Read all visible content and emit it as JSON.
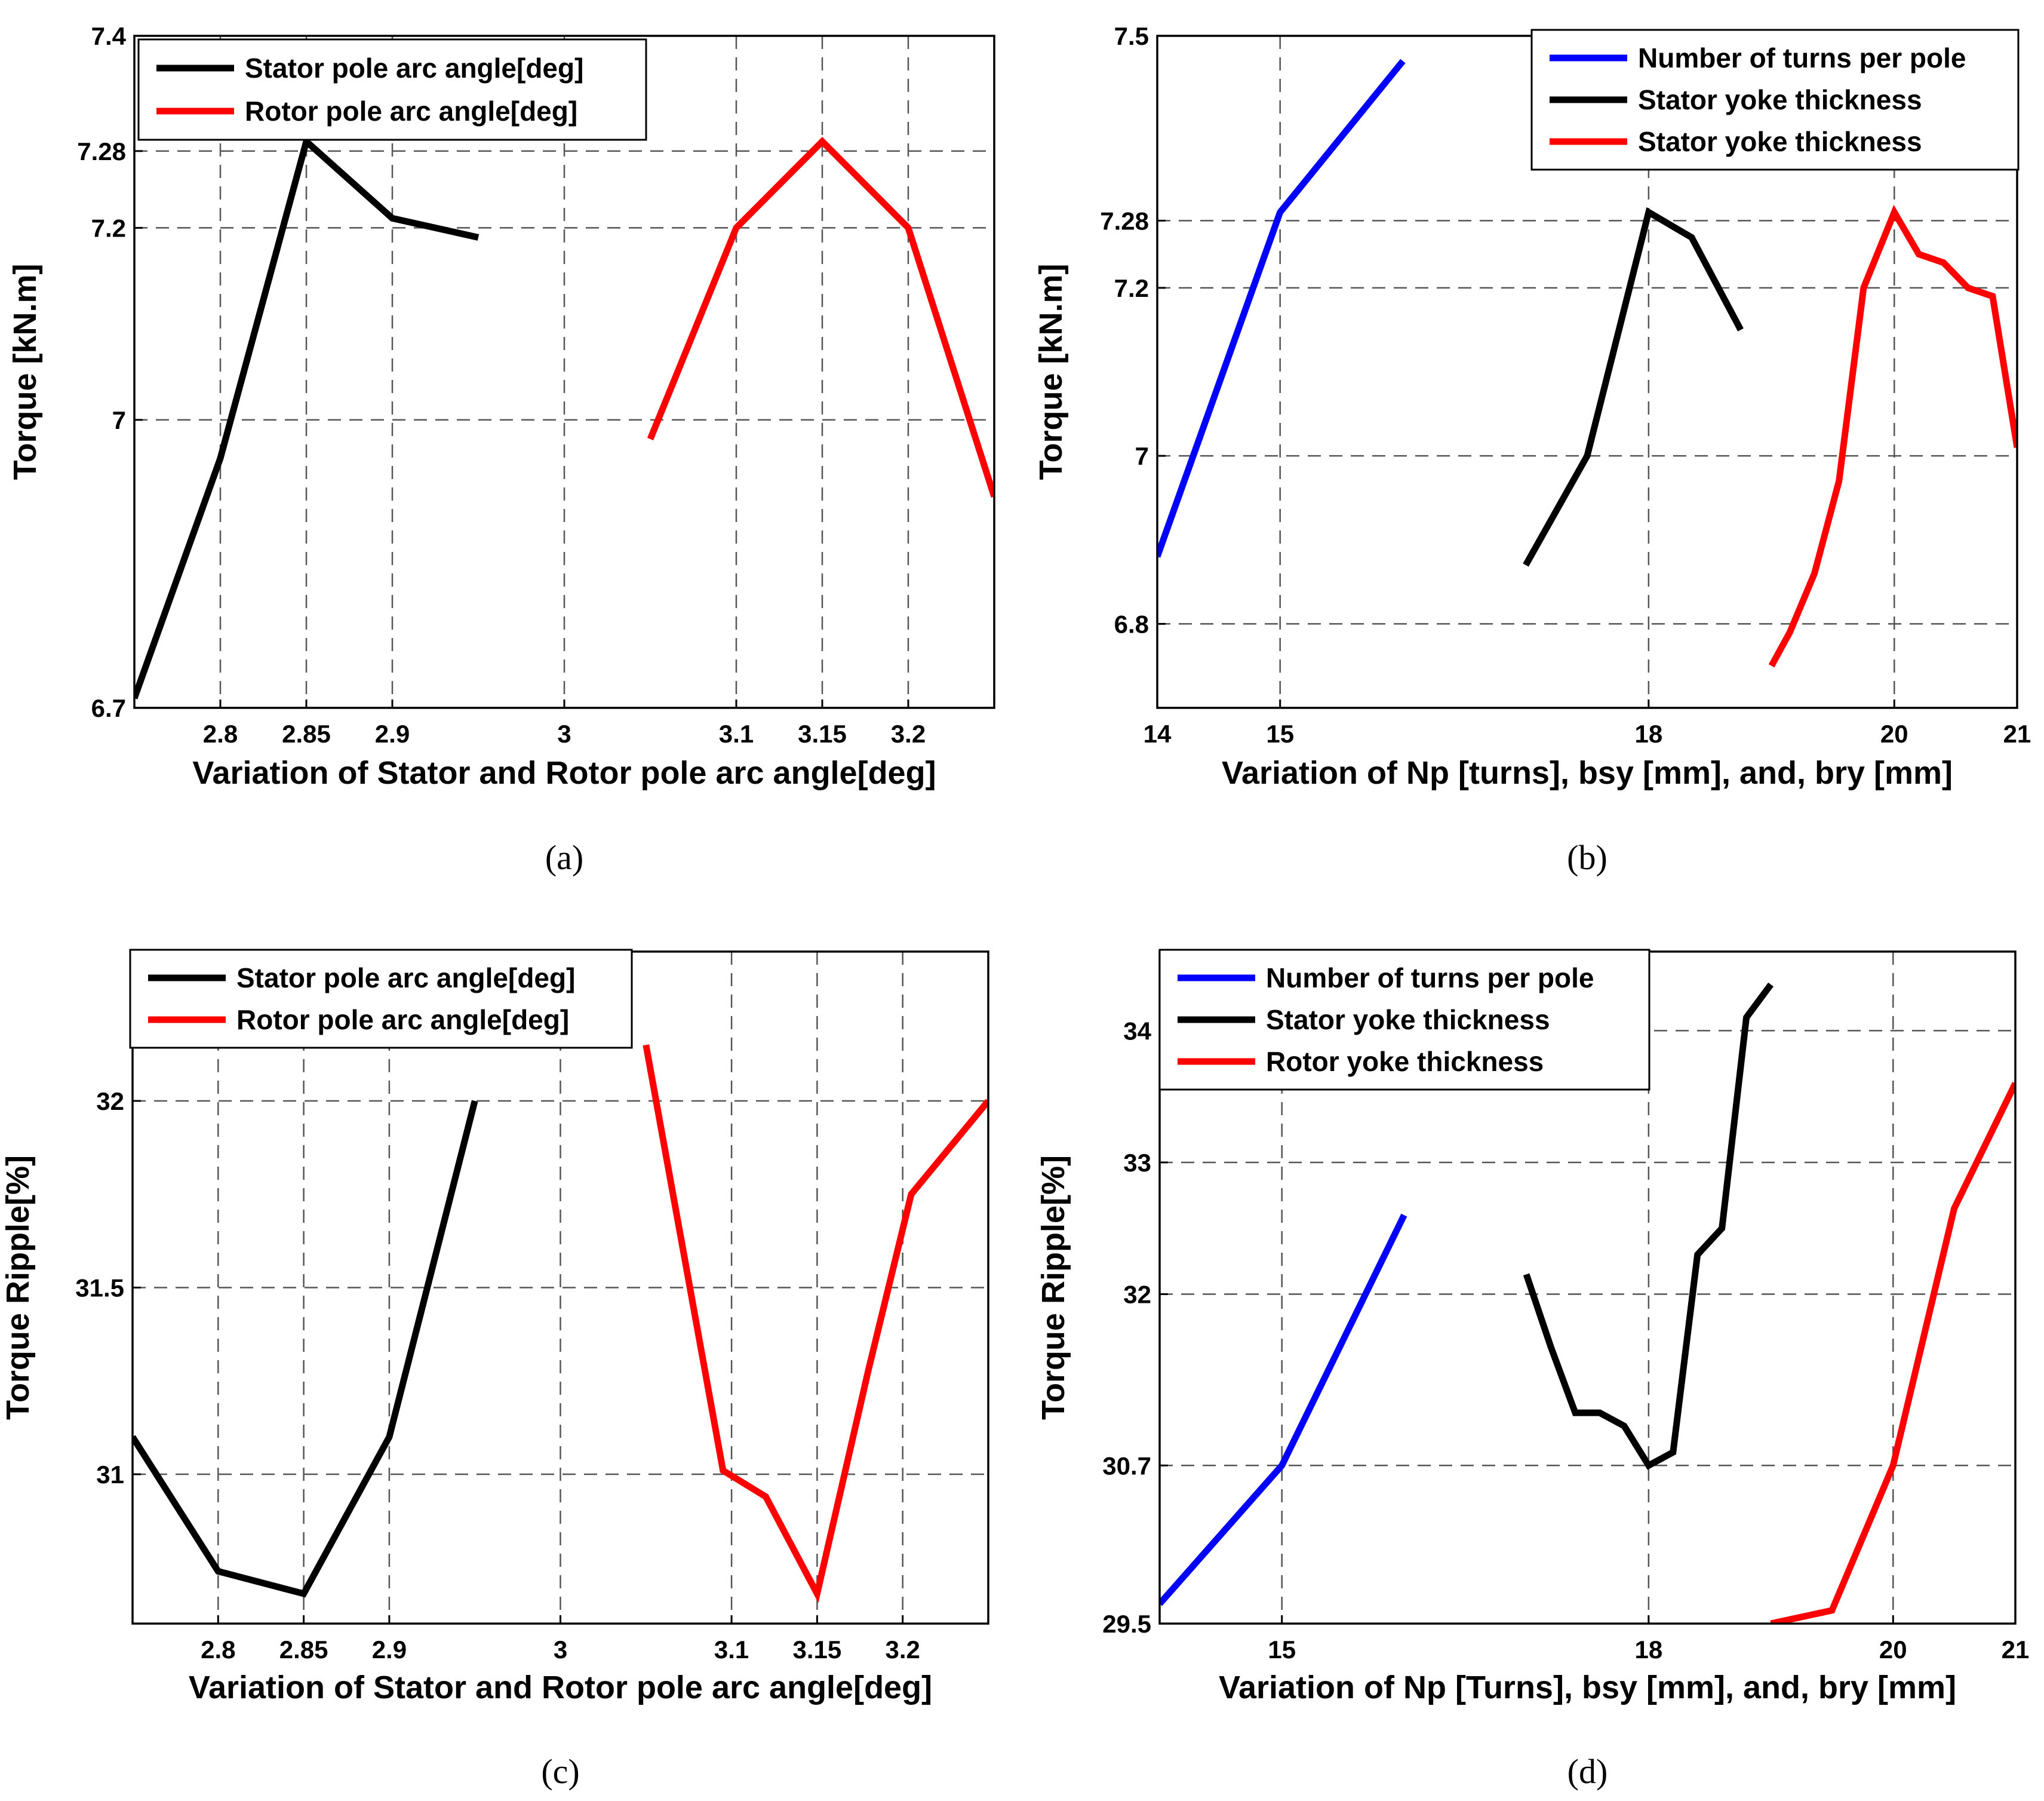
{
  "chart_data": [
    {
      "id": "a",
      "type": "line",
      "caption": "(a)",
      "xlabel": "Variation of Stator and Rotor pole arc angle[deg]",
      "ylabel": "Torque [kN.m]",
      "xlim": [
        2.75,
        3.25
      ],
      "ylim": [
        6.7,
        7.4
      ],
      "xticks": [
        2.8,
        2.85,
        2.9,
        3,
        3.1,
        3.15,
        3.2
      ],
      "xtick_labels": [
        "2.8",
        "2.85",
        "2.9",
        "3",
        "3.1",
        "3.15",
        "3.2"
      ],
      "yticks": [
        6.7,
        7,
        7.2,
        7.28,
        7.4
      ],
      "ytick_labels": [
        "6.7",
        "7",
        "7.2",
        "7.28",
        "7.4"
      ],
      "grid": true,
      "legend_position": "top-left",
      "series": [
        {
          "name": "Stator pole arc angle[deg]",
          "color": "#000000",
          "x": [
            2.75,
            2.8,
            2.85,
            2.9,
            2.95
          ],
          "y": [
            6.71,
            6.96,
            7.29,
            7.21,
            7.19
          ]
        },
        {
          "name": "Rotor pole arc angle[deg]",
          "color": "#ff0000",
          "x": [
            3.05,
            3.1,
            3.15,
            3.2,
            3.25
          ],
          "y": [
            6.98,
            7.2,
            7.29,
            7.2,
            6.92
          ]
        }
      ]
    },
    {
      "id": "b",
      "type": "line",
      "caption": "(b)",
      "xlabel": "Variation of Np [turns], bsy [mm], and, bry [mm]",
      "ylabel": "Torque [kN.m]",
      "xlim": [
        14,
        21
      ],
      "ylim": [
        6.7,
        7.5
      ],
      "xticks": [
        14,
        15,
        18,
        20,
        21
      ],
      "xtick_labels": [
        "14",
        "15",
        "18",
        "20",
        "21"
      ],
      "yticks": [
        6.8,
        7,
        7.2,
        7.28,
        7.5
      ],
      "ytick_labels": [
        "6.8",
        "7",
        "7.2",
        "7.28",
        "7.5"
      ],
      "grid": true,
      "legend_position": "top-right",
      "series": [
        {
          "name": "Number of turns per pole",
          "color": "#0000ff",
          "x": [
            14,
            15,
            16
          ],
          "y": [
            6.88,
            7.29,
            7.47
          ]
        },
        {
          "name": "Stator yoke thickness",
          "color": "#000000",
          "x": [
            17,
            17.5,
            18,
            18.35,
            18.75
          ],
          "y": [
            6.87,
            7,
            7.29,
            7.26,
            7.15
          ]
        },
        {
          "name": "Stator yoke thickness",
          "color": "#ff0000",
          "x": [
            19,
            19.15,
            19.35,
            19.55,
            19.75,
            20,
            20.2,
            20.4,
            20.6,
            20.8,
            21
          ],
          "y": [
            6.75,
            6.79,
            6.86,
            6.97,
            7.2,
            7.29,
            7.24,
            7.23,
            7.2,
            7.19,
            7.01
          ]
        }
      ]
    },
    {
      "id": "c",
      "type": "line",
      "caption": "(c)",
      "xlabel": "Variation of Stator and Rotor pole arc angle[deg]",
      "ylabel": "Torque Ripple[%]",
      "xlim": [
        2.75,
        3.25
      ],
      "ylim": [
        30.6,
        32.4
      ],
      "xticks": [
        2.8,
        2.85,
        2.9,
        3,
        3.1,
        3.15,
        3.2
      ],
      "xtick_labels": [
        "2.8",
        "2.85",
        "2.9",
        "3",
        "3.1",
        "3.15",
        "3.2"
      ],
      "yticks": [
        31,
        31.5,
        32
      ],
      "ytick_labels": [
        "31",
        "31.5",
        "32"
      ],
      "grid": true,
      "legend_position": "top-left",
      "series": [
        {
          "name": "Stator pole arc angle[deg]",
          "color": "#000000",
          "x": [
            2.75,
            2.8,
            2.85,
            2.9,
            2.95
          ],
          "y": [
            31.1,
            30.74,
            30.68,
            31.1,
            32
          ]
        },
        {
          "name": "Rotor pole arc angle[deg]",
          "color": "#ff0000",
          "x": [
            3.05,
            3.095,
            3.12,
            3.15,
            3.18,
            3.205,
            3.25
          ],
          "y": [
            32.15,
            31.01,
            30.94,
            30.68,
            31.28,
            31.75,
            32
          ]
        }
      ]
    },
    {
      "id": "d",
      "type": "line",
      "caption": "(d)",
      "xlabel": "Variation of  Np [Turns], bsy [mm], and, bry [mm]",
      "ylabel": "Torque Ripple[%]",
      "xlim": [
        14,
        21
      ],
      "ylim": [
        29.5,
        34.6
      ],
      "xticks": [
        15,
        18,
        20,
        21
      ],
      "xtick_labels": [
        "15",
        "18",
        "20",
        "21"
      ],
      "yticks": [
        29.5,
        30.7,
        32,
        33,
        34
      ],
      "ytick_labels": [
        "29.5",
        "30.7",
        "32",
        "33",
        "34"
      ],
      "grid": true,
      "legend_position": "top-left",
      "series": [
        {
          "name": "Number of turns per pole",
          "color": "#0000ff",
          "x": [
            14,
            15,
            16
          ],
          "y": [
            29.65,
            30.7,
            32.6
          ]
        },
        {
          "name": "Stator yoke thickness",
          "color": "#000000",
          "x": [
            17,
            17.2,
            17.4,
            17.6,
            17.8,
            18,
            18.2,
            18.4,
            18.6,
            18.8,
            19
          ],
          "y": [
            32.15,
            31.6,
            31.1,
            31.1,
            31,
            30.7,
            30.8,
            32.3,
            32.5,
            34.1,
            34.35
          ]
        },
        {
          "name": "Rotor yoke thickness",
          "color": "#ff0000",
          "x": [
            19,
            19.5,
            20,
            20.5,
            21
          ],
          "y": [
            29.5,
            29.6,
            30.7,
            32.65,
            33.6
          ]
        }
      ]
    }
  ]
}
